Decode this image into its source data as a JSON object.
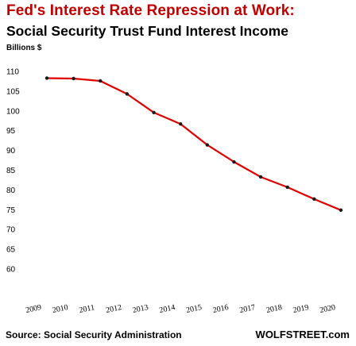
{
  "chart_data": {
    "type": "line",
    "title": "Fed's Interest Rate Repression at Work:",
    "subtitle": "Social Security Trust Fund Interest Income",
    "ylabel": "Billions $",
    "categories": [
      "2009",
      "2010",
      "2011",
      "2012",
      "2013",
      "2014",
      "2015",
      "2016",
      "2017",
      "2018",
      "2019",
      "2020"
    ],
    "series": [
      {
        "values": [
          108.3,
          108.2,
          107.6,
          104.3,
          99.6,
          96.7,
          91.4,
          87.1,
          83.3,
          80.7,
          77.7,
          74.9
        ]
      }
    ],
    "ylim": [
      60,
      110
    ],
    "yticks": [
      60,
      65,
      70,
      75,
      80,
      85,
      90,
      95,
      100,
      105,
      110
    ],
    "grid": false,
    "line_color": "#e00000",
    "marker_color": "#1a1a1a"
  },
  "footer": {
    "source": "Source: Social Security Administration",
    "brand": "WOLFSTREET.com"
  }
}
